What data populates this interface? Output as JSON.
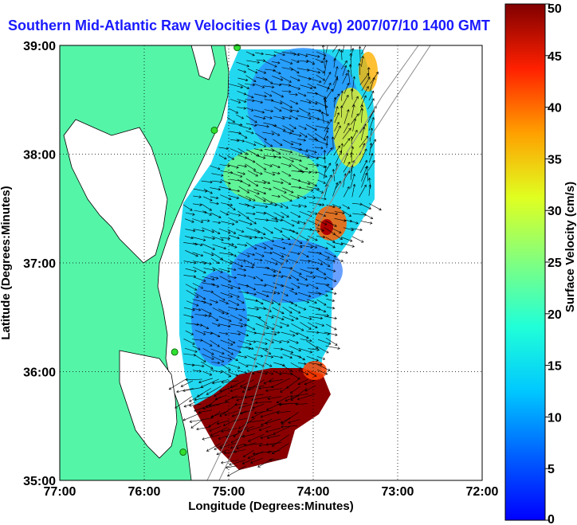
{
  "title": "Southern Mid-Atlantic Raw Velocities (1 Day Avg) 2007/07/10 1400 GMT",
  "map": {
    "xlabel": "Longitude (Degrees:Minutes)",
    "ylabel": "Latitude (Degrees:Minutes)",
    "x_ticks": [
      "77:00",
      "76:00",
      "75:00",
      "74:00",
      "73:00",
      "72:00"
    ],
    "y_ticks": [
      "39:00",
      "38:00",
      "37:00",
      "36:00",
      "35:00"
    ],
    "lon_range": [
      -77,
      -72
    ],
    "lat_range": [
      35,
      39
    ],
    "grid": true,
    "land_color": "#55f5a8",
    "water_color": "#ffffff"
  },
  "colorbar": {
    "label": "Surface Velocity (cm/s)",
    "ticks": [
      "50",
      "45",
      "40",
      "35",
      "30",
      "25",
      "20",
      "15",
      "10",
      "5",
      "0"
    ],
    "range": [
      0,
      50
    ],
    "colormap": "jet"
  },
  "stations": [
    {
      "lon": -74.9,
      "lat": 38.98
    },
    {
      "lon": -75.17,
      "lat": 38.22
    },
    {
      "lon": -75.64,
      "lat": 36.18
    },
    {
      "lon": -75.54,
      "lat": 35.26
    }
  ]
}
